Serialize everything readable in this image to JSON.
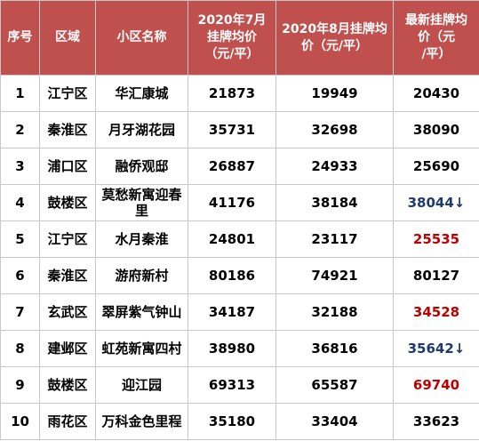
{
  "colors": {
    "header_bg": "#c0504d",
    "header_text": "#ffffff",
    "up_red": "#c00000",
    "down_blue": "#1f3a6e"
  },
  "headers": {
    "no": "序号",
    "district": "区域",
    "name": "小区名称",
    "jul": [
      "2020年7月",
      "挂牌均价",
      "（元/平）"
    ],
    "aug": [
      "2020年8月挂牌均",
      "价（元/平）"
    ],
    "latest": [
      "最新挂牌均",
      "价（元",
      "/平）"
    ]
  },
  "rows": [
    {
      "no": "1",
      "district": "江宁区",
      "name": [
        "华汇康城"
      ],
      "jul": "21873",
      "aug": "19949",
      "latest": "20430",
      "latest_color": "default",
      "arrow": ""
    },
    {
      "no": "2",
      "district": "秦淮区",
      "name": [
        "月牙湖花园"
      ],
      "jul": "35731",
      "aug": "32698",
      "latest": "38090",
      "latest_color": "default",
      "arrow": ""
    },
    {
      "no": "3",
      "district": "浦口区",
      "name": [
        "融侨观邸"
      ],
      "jul": "26887",
      "aug": "24933",
      "latest": "25690",
      "latest_color": "default",
      "arrow": ""
    },
    {
      "no": "4",
      "district": "鼓楼区",
      "name": [
        "莫愁新寓迎春",
        "里"
      ],
      "jul": "41176",
      "aug": "38184",
      "latest": "38044",
      "latest_color": "down",
      "arrow": "↓"
    },
    {
      "no": "5",
      "district": "江宁区",
      "name": [
        "水月秦淮"
      ],
      "jul": "24801",
      "aug": "23117",
      "latest": "25535",
      "latest_color": "up",
      "arrow": ""
    },
    {
      "no": "6",
      "district": "秦淮区",
      "name": [
        "游府新村"
      ],
      "jul": "80186",
      "aug": "74921",
      "latest": "80127",
      "latest_color": "default",
      "arrow": ""
    },
    {
      "no": "7",
      "district": "玄武区",
      "name": [
        "翠屏紫气钟山"
      ],
      "jul": "34187",
      "aug": "32188",
      "latest": "34528",
      "latest_color": "up",
      "arrow": ""
    },
    {
      "no": "8",
      "district": "建邺区",
      "name": [
        "虹苑新寓四村"
      ],
      "jul": "38980",
      "aug": "36816",
      "latest": "35642",
      "latest_color": "down",
      "arrow": "↓"
    },
    {
      "no": "9",
      "district": "鼓楼区",
      "name": [
        "迎江园"
      ],
      "jul": "69313",
      "aug": "65587",
      "latest": "69740",
      "latest_color": "up",
      "arrow": ""
    },
    {
      "no": "10",
      "district": "雨花区",
      "name": [
        "万科金色里程"
      ],
      "jul": "35180",
      "aug": "33404",
      "latest": "33623",
      "latest_color": "default",
      "arrow": ""
    }
  ]
}
